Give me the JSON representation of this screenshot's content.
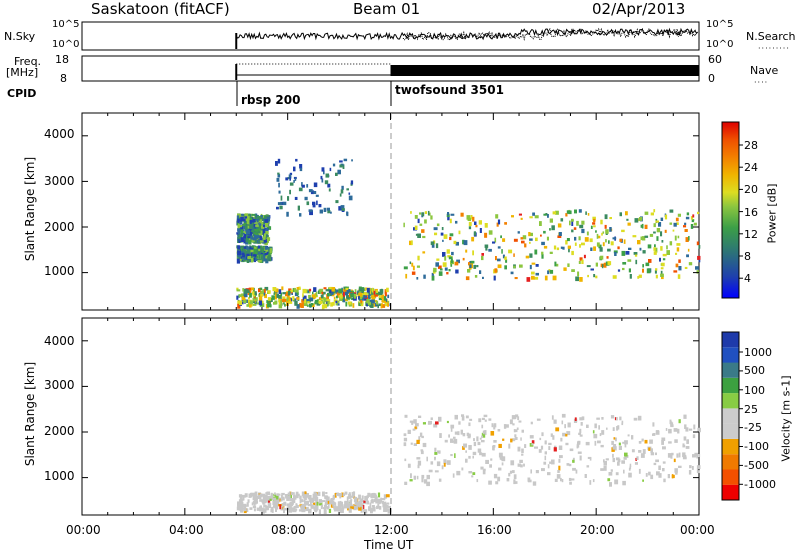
{
  "header": {
    "station": "Saskatoon (fitACF)",
    "beam": "Beam 01",
    "date": "02/Apr/2013"
  },
  "summary": {
    "nsky_label": "N.Sky",
    "nsearch_label": "N.Search",
    "freq_label": "Freq.",
    "freq_unit": "[MHz]",
    "nave_label": "Nave",
    "cpid_label": "CPID",
    "nsky_ticks": [
      "10^5",
      "10^0"
    ],
    "nsearch_ticks": [
      "10^5",
      "10^0"
    ],
    "freq_ticks": [
      "18",
      "8"
    ],
    "nave_ticks": [
      "60",
      "0"
    ],
    "cpid_segments": [
      {
        "name": "rbsp 200",
        "start": 6
      },
      {
        "name": "twofsound 3501",
        "start": 12
      }
    ]
  },
  "chart_data": [
    {
      "type": "heatmap",
      "panel": "power",
      "ylabel": "Slant Range [km]",
      "xlabel": "",
      "ylim": [
        180,
        4500
      ],
      "yticks": [
        1000,
        2000,
        3000,
        4000
      ],
      "xlim": [
        0,
        24
      ],
      "colorbar": {
        "label": "Power [dB]",
        "ticks": [
          "28",
          "24",
          "20",
          "16",
          "12",
          "8",
          "4"
        ],
        "colors": [
          "#0000ff",
          "#1e3fae",
          "#2e6b9a",
          "#3a8a5f",
          "#3c9f47",
          "#8cc63f",
          "#dddd22",
          "#f0b400",
          "#f38000",
          "#f05000",
          "#e51f1f",
          "#dd0000"
        ]
      },
      "echo_regions": [
        {
          "t": [
            6.0,
            11.9
          ],
          "range": [
            300,
            700
          ],
          "level": "high"
        },
        {
          "t": [
            6.0,
            7.2
          ],
          "range": [
            1700,
            2300
          ],
          "level": "medium"
        },
        {
          "t": [
            6.0,
            7.3
          ],
          "range": [
            1300,
            1600
          ],
          "level": "medium"
        },
        {
          "t": [
            7.5,
            10.5
          ],
          "range": [
            2300,
            3500
          ],
          "level": "low"
        },
        {
          "t": [
            12.5,
            24.0
          ],
          "range": [
            900,
            2400
          ],
          "level": "high"
        }
      ]
    },
    {
      "type": "heatmap",
      "panel": "velocity",
      "ylabel": "Slant Range [km]",
      "xlabel": "Time UT",
      "ylim": [
        180,
        4500
      ],
      "yticks": [
        1000,
        2000,
        3000,
        4000
      ],
      "xlim": [
        0,
        24
      ],
      "xticks": [
        "00:00",
        "04:00",
        "08:00",
        "12:00",
        "16:00",
        "20:00",
        "00:00"
      ],
      "colorbar": {
        "label": "Velocity [m s-1]",
        "ticks": [
          "1000",
          "500",
          "100",
          "25",
          "-25",
          "-100",
          "-500",
          "-1000"
        ],
        "colors": [
          "#ee0000",
          "#f45000",
          "#f07a00",
          "#f0a000",
          "#cccccc",
          "#cccccc",
          "#88cc44",
          "#3ca040",
          "#3a7a88",
          "#2050c0",
          "#1e3aaa"
        ]
      },
      "echo_regions": [
        {
          "t": [
            6.0,
            11.9
          ],
          "range": [
            300,
            700
          ],
          "level": "ground-scatter"
        },
        {
          "t": [
            12.5,
            24.0
          ],
          "range": [
            900,
            2400
          ],
          "level": "ground-scatter"
        }
      ]
    }
  ]
}
